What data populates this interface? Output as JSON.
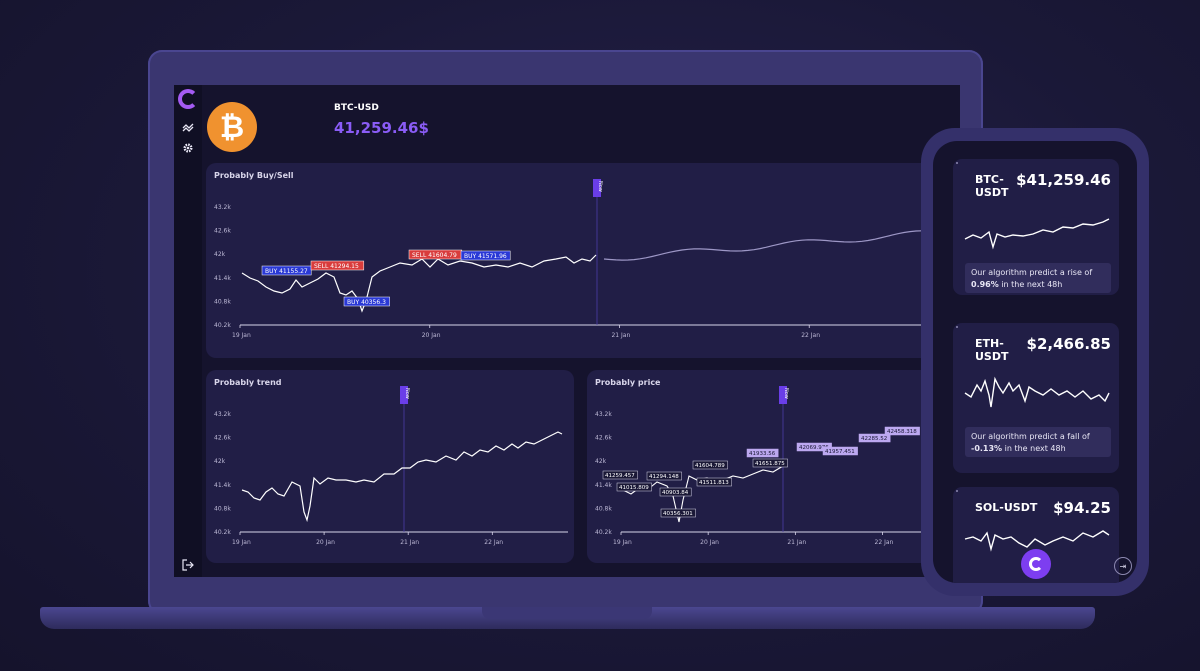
{
  "desktop": {
    "header": {
      "ticker": "BTC-USD",
      "price": "41,259.46$",
      "coin_symbol": "₿"
    },
    "sidebar": {
      "icons": [
        "logo-icon",
        "trend-icon",
        "gear-icon",
        "logout-icon"
      ]
    },
    "cards": {
      "buy_sell": {
        "title": "Probably Buy/Sell",
        "yticks": [
          "43.2k",
          "42.6k",
          "42k",
          "41.4k",
          "40.8k",
          "40.2k"
        ],
        "xticks": [
          "19 Jan",
          "20 Jan",
          "21 Jan",
          "22 Jan"
        ],
        "now_label": "Now",
        "markers": [
          {
            "label": "BUY 41155.27",
            "type": "buy"
          },
          {
            "label": "SELL 41294.15",
            "type": "sell"
          },
          {
            "label": "BUY 40356.3",
            "type": "buy"
          },
          {
            "label": "SELL 41604.79",
            "type": "sell"
          },
          {
            "label": "BUY 41571.96",
            "type": "buy"
          }
        ]
      },
      "trend": {
        "title": "Probably trend",
        "yticks": [
          "43.2k",
          "42.6k",
          "42k",
          "41.4k",
          "40.8k",
          "40.2k"
        ],
        "xticks": [
          "19 Jan",
          "20 Jan",
          "21 Jan",
          "22 Jan"
        ],
        "now_label": "Now"
      },
      "price": {
        "title": "Probably price",
        "yticks": [
          "43.2k",
          "42.6k",
          "42k",
          "41.4k",
          "40.8k",
          "40.2k"
        ],
        "xticks": [
          "19 Jan",
          "20 Jan",
          "21 Jan",
          "22 Jan"
        ],
        "now_label": "Now",
        "labels": [
          "41259.457",
          "41015.809",
          "41294.148",
          "40903.84",
          "40356.301",
          "41604.789",
          "41511.813",
          "41651.875",
          "41933.56",
          "42069.976",
          "41957.451",
          "42285.52",
          "42458.318"
        ]
      }
    }
  },
  "phone": {
    "coins": [
      {
        "symbol": "BTC-\nUSDT",
        "value": "$41,259.46",
        "note_pre": "Our algorithm predict a rise of",
        "note_pct": "0.96%",
        "note_post": " in the next 48h"
      },
      {
        "symbol": "ETH-\nUSDT",
        "value": "$2,466.85",
        "note_pre": "Our algorithm predict a fall of",
        "note_pct": "-0.13%",
        "note_post": " in the next 48h"
      },
      {
        "symbol": "SOL-USDT",
        "value": "$94.25"
      }
    ]
  },
  "colors": {
    "accent": "#8a5cf6",
    "buy": "#2a39d6",
    "sell": "#d93c3c",
    "bitcoin": "#f0922f",
    "card": "#211e46"
  }
}
